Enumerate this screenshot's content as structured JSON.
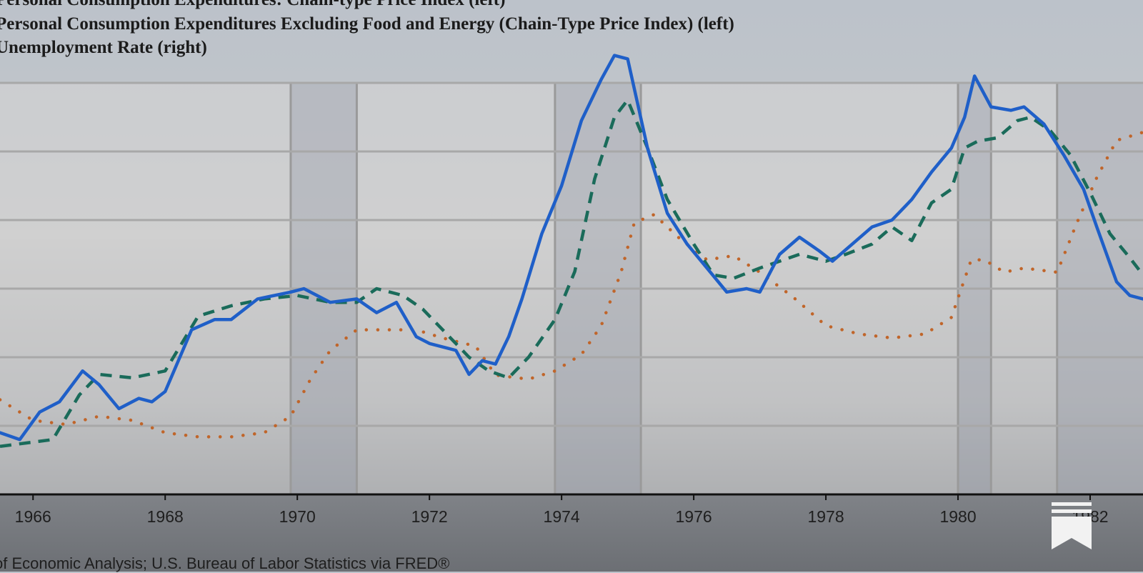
{
  "chart_data": {
    "type": "line",
    "title": "",
    "legend_placement": "top-left",
    "legend": [
      "Personal Consumption Expenditures: Chain-type Price Index (left)",
      "Personal Consumption Expenditures Excluding Food and Energy (Chain-Type Price Index) (left)",
      "Unemployment Rate (right)"
    ],
    "x_ticks": [
      "1966",
      "1968",
      "1970",
      "1972",
      "1974",
      "1976",
      "1978",
      "1980",
      "1982"
    ],
    "xlim": [
      1965.5,
      1982.8
    ],
    "ylim": [
      0,
      12
    ],
    "y2lim": [
      2,
      12
    ],
    "grid": true,
    "recessions": [
      [
        1969.9,
        1970.9
      ],
      [
        1973.9,
        1975.2
      ],
      [
        1980.0,
        1980.5
      ],
      [
        1981.5,
        1982.9
      ]
    ],
    "series": [
      {
        "name": "Personal Consumption Expenditures: Chain-type Price Index (left)",
        "axis": "left",
        "color": "#1f5fc8",
        "style": "solid",
        "x": [
          1965.5,
          1965.8,
          1966.1,
          1966.4,
          1966.75,
          1967.0,
          1967.3,
          1967.6,
          1967.8,
          1968.0,
          1968.4,
          1968.75,
          1969.0,
          1969.4,
          1969.9,
          1970.1,
          1970.5,
          1970.9,
          1971.2,
          1971.5,
          1971.8,
          1972.0,
          1972.4,
          1972.6,
          1972.8,
          1973.0,
          1973.2,
          1973.4,
          1973.7,
          1974.0,
          1974.3,
          1974.6,
          1974.8,
          1975.0,
          1975.3,
          1975.6,
          1975.9,
          1976.2,
          1976.5,
          1976.8,
          1977.0,
          1977.3,
          1977.6,
          1977.9,
          1978.1,
          1978.4,
          1978.7,
          1979.0,
          1979.3,
          1979.6,
          1979.9,
          1980.1,
          1980.25,
          1980.5,
          1980.8,
          1981.0,
          1981.3,
          1981.6,
          1981.9,
          1982.1,
          1982.4,
          1982.6,
          1982.8
        ],
        "y": [
          1.8,
          1.6,
          2.4,
          2.7,
          3.6,
          3.2,
          2.5,
          2.8,
          2.7,
          3.0,
          4.8,
          5.1,
          5.1,
          5.7,
          5.9,
          6.0,
          5.6,
          5.7,
          5.3,
          5.6,
          4.6,
          4.4,
          4.2,
          3.5,
          3.9,
          3.8,
          4.6,
          5.7,
          7.6,
          9.0,
          10.9,
          12.1,
          12.8,
          12.7,
          10.1,
          8.2,
          7.3,
          6.6,
          5.9,
          6.0,
          5.9,
          7.0,
          7.5,
          7.1,
          6.8,
          7.3,
          7.8,
          8.0,
          8.6,
          9.4,
          10.1,
          11.0,
          12.2,
          11.3,
          11.2,
          11.3,
          10.8,
          9.9,
          8.9,
          7.8,
          6.2,
          5.8,
          5.7
        ]
      },
      {
        "name": "Personal Consumption Expenditures Excluding Food and Energy (Chain-Type Price Index) (left)",
        "axis": "left",
        "color": "#1a6b5a",
        "style": "dashed",
        "x": [
          1965.5,
          1965.9,
          1966.3,
          1966.7,
          1967.0,
          1967.5,
          1968.0,
          1968.5,
          1969.0,
          1969.5,
          1970.0,
          1970.5,
          1970.9,
          1971.2,
          1971.6,
          1971.9,
          1972.3,
          1972.6,
          1972.9,
          1973.2,
          1973.5,
          1973.9,
          1974.2,
          1974.5,
          1974.8,
          1975.0,
          1975.3,
          1975.6,
          1976.0,
          1976.3,
          1976.6,
          1977.0,
          1977.3,
          1977.6,
          1978.0,
          1978.3,
          1978.7,
          1979.0,
          1979.3,
          1979.6,
          1979.9,
          1980.1,
          1980.3,
          1980.6,
          1980.9,
          1981.1,
          1981.4,
          1981.7,
          1982.0,
          1982.3,
          1982.6,
          1982.8
        ],
        "y": [
          1.4,
          1.5,
          1.6,
          2.9,
          3.5,
          3.4,
          3.6,
          5.2,
          5.5,
          5.7,
          5.8,
          5.6,
          5.6,
          6.0,
          5.8,
          5.4,
          4.6,
          4.0,
          3.6,
          3.4,
          4.0,
          5.1,
          6.5,
          9.2,
          11.0,
          11.5,
          10.1,
          8.6,
          7.3,
          6.4,
          6.3,
          6.6,
          6.8,
          7.0,
          6.8,
          7.0,
          7.3,
          7.8,
          7.4,
          8.5,
          8.9,
          10.1,
          10.3,
          10.4,
          10.9,
          11.0,
          10.6,
          9.9,
          8.8,
          7.6,
          6.9,
          6.4
        ]
      },
      {
        "name": "Unemployment Rate (right)",
        "axis": "right",
        "color": "#c0652a",
        "style": "dotted",
        "x": [
          1965.5,
          1966.0,
          1966.5,
          1967.0,
          1967.5,
          1968.0,
          1968.5,
          1969.0,
          1969.5,
          1969.9,
          1970.2,
          1970.5,
          1970.9,
          1971.3,
          1971.8,
          1972.2,
          1972.7,
          1973.0,
          1973.5,
          1973.9,
          1974.3,
          1974.6,
          1974.9,
          1975.1,
          1975.4,
          1975.8,
          1976.2,
          1976.6,
          1977.0,
          1977.5,
          1978.0,
          1978.5,
          1979.0,
          1979.5,
          1979.9,
          1980.2,
          1980.4,
          1980.7,
          1981.0,
          1981.5,
          1981.8,
          1982.1,
          1982.4,
          1982.8
        ],
        "y": [
          4.3,
          3.8,
          3.7,
          3.9,
          3.8,
          3.5,
          3.4,
          3.4,
          3.5,
          3.9,
          4.8,
          5.5,
          6.0,
          6.0,
          6.0,
          5.8,
          5.6,
          4.9,
          4.8,
          5.0,
          5.4,
          6.1,
          7.4,
          8.6,
          8.8,
          8.2,
          7.7,
          7.8,
          7.4,
          6.8,
          6.1,
          5.9,
          5.8,
          5.9,
          6.3,
          7.7,
          7.7,
          7.4,
          7.5,
          7.4,
          8.6,
          9.7,
          10.6,
          10.8
        ]
      }
    ],
    "source": "of Economic Analysis; U.S. Bureau of Labor Statistics via FRED®"
  },
  "icons": {
    "bookmark": "bookmark-icon"
  }
}
